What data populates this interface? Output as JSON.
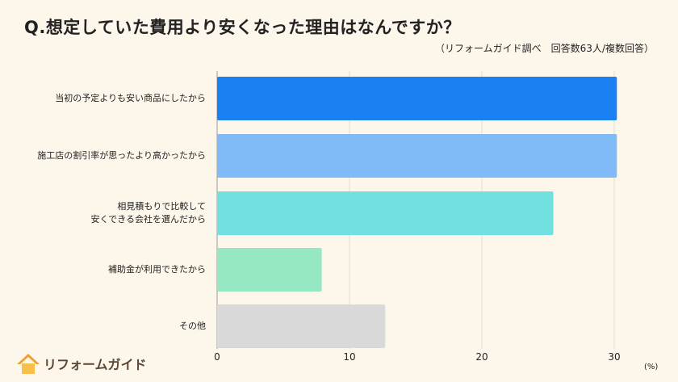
{
  "chart_data": {
    "type": "bar",
    "orientation": "horizontal",
    "title": "Q.想定していた費用より安くなった理由はなんですか？",
    "subtitle": "（リフォームガイド調べ　回答数63人/複数回答）",
    "categories": [
      "当初の予定よりも安い商品にしたから",
      "施工店の割引率が思ったより高かったから",
      "相見積もりで比較して\n安くできる会社を選んだから",
      "補助金が利用できたから",
      "その他"
    ],
    "values": [
      30.2,
      30.2,
      25.4,
      7.9,
      12.7
    ],
    "colors": [
      "#1a7ff0",
      "#80bbf8",
      "#72e0e0",
      "#96e8c2",
      "#d9d9d9"
    ],
    "xlim": [
      0,
      30
    ],
    "xticks": [
      "0",
      "10",
      "20",
      "30"
    ],
    "xunit": "(%)",
    "grid": true
  },
  "logo": {
    "text": "リフォームガイド",
    "color": "#f0a030"
  }
}
